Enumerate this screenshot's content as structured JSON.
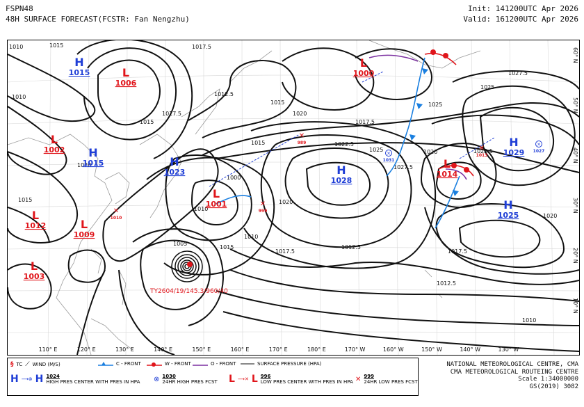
{
  "header": {
    "product": "FSPN48",
    "title": "48H SURFACE FORECAST(FCSTR: Fan Nengzhu)",
    "init": "Init: 141200UTC Apr 2026",
    "valid": "Valid: 161200UTC Apr 2026"
  },
  "axes": {
    "lon": [
      "110° E",
      "120° E",
      "130° E",
      "140° E",
      "150° E",
      "160° E",
      "170° E",
      "180° E",
      "170° W",
      "160° W",
      "150° W",
      "140° W",
      "130° W"
    ],
    "lat_right": [
      "60° N",
      "50° N",
      "40° N",
      "30° N",
      "20° N",
      "10° N"
    ]
  },
  "centers": [
    {
      "type": "H",
      "value": "1015"
    },
    {
      "type": "L",
      "value": "1006"
    },
    {
      "type": "L",
      "value": "1002"
    },
    {
      "type": "H",
      "value": "1015"
    },
    {
      "type": "H",
      "value": "1023"
    },
    {
      "type": "L",
      "value": "1001"
    },
    {
      "type": "L",
      "value": "1012"
    },
    {
      "type": "L",
      "value": "1009"
    },
    {
      "type": "L",
      "value": "1003"
    },
    {
      "type": "L",
      "value": "1000"
    },
    {
      "type": "H",
      "value": "1028"
    },
    {
      "type": "L",
      "value": "1014"
    },
    {
      "type": "H",
      "value": "1029"
    },
    {
      "type": "H",
      "value": "1025"
    }
  ],
  "isobar_labels": [
    "1010",
    "1015",
    "1017.5",
    "1012.5",
    "1020",
    "1022.5",
    "1025",
    "1027.5",
    "1000",
    "1005"
  ],
  "forecast_marks": [
    {
      "kind": "low",
      "value": "1010"
    },
    {
      "kind": "low",
      "value": "999"
    },
    {
      "kind": "low",
      "value": "989"
    },
    {
      "kind": "high",
      "value": "1031"
    },
    {
      "kind": "low",
      "value": "1013"
    },
    {
      "kind": "high",
      "value": "1027"
    }
  ],
  "typhoon_label": "TY2604/19/145.3/960/40",
  "legend": {
    "tc": "TC",
    "wind": "WIND (M/S)",
    "cold": "C - FRONT",
    "warm": "W - FRONT",
    "occl": "O - FRONT",
    "isobar": "SURFACE PRESSURE (HPA)",
    "high_val": "1024",
    "high_desc": "HIGH PRES CENTER WITH PRES IN HPA",
    "h24_val": "1030",
    "h24_desc": "24HR HIGH PRES FCST",
    "low_val": "996",
    "low_desc": "LOW PRES CENTER WITH PRES IN HPA",
    "l24_val": "999",
    "l24_desc": "24HR LOW PRES FCST"
  },
  "credits": {
    "line1": "NATIONAL METEOROLOGICAL CENTRE, CMA",
    "line2": "CMA METEOROLOGICAL ROUTEING CENTRE",
    "line3": "Scale 1:34000000",
    "line4": "GS(2019) 3082"
  },
  "colors": {
    "high": "#1f3ed6",
    "low": "#e0151b",
    "isobar": "#111111",
    "coast": "#9a9a9a",
    "front_cold": "#1a7fe0",
    "front_warm": "#e0151b",
    "occluded": "#7b2fa0"
  }
}
